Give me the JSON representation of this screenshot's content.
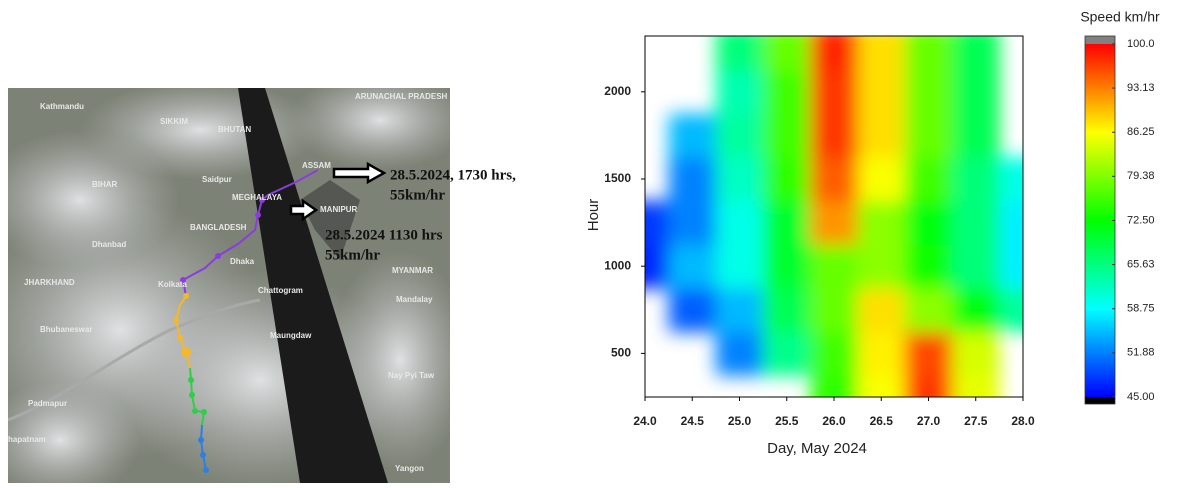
{
  "map": {
    "labels": [
      "Kathmandu",
      "SIKKIM",
      "BHUTAN",
      "ARUNACHAL PRADESH",
      "BIHAR",
      "Saidpur",
      "MEGHALAYA",
      "ASSAM",
      "BANGLADESH",
      "Dhanbad",
      "JHARKHAND",
      "Dhaka",
      "Kolkata",
      "Chattogram",
      "MYANMAR",
      "Mandalay",
      "Bhubaneswar",
      "Maungdaw",
      "Nay Pyi Taw",
      "Padmapur",
      "Yangon",
      "MANIPUR",
      "hapatnam"
    ],
    "annotations": [
      "28.5.2024, 1730 hrs,",
      "55km/hr",
      "28.5.2024 1130 hrs",
      "55km/hr"
    ]
  },
  "chart_data": {
    "type": "contour",
    "x_label": "Day, May 2024",
    "y_label": "Hour",
    "x": [
      24,
      24.5,
      25,
      25.5,
      26,
      26.5,
      27,
      27.5,
      28
    ],
    "y": [
      250,
      500,
      750,
      1000,
      1250,
      1500,
      1750,
      2000,
      2250
    ],
    "z": [
      [
        null,
        null,
        null,
        null,
        75,
        86,
        97,
        85,
        null
      ],
      [
        null,
        null,
        52,
        65,
        76,
        87,
        96,
        84,
        null
      ],
      [
        null,
        50,
        55,
        68,
        78,
        88,
        80,
        72,
        64
      ],
      [
        47,
        55,
        60,
        70,
        78,
        80,
        73,
        66,
        58
      ],
      [
        48,
        52,
        60,
        70,
        92,
        80,
        72,
        66,
        58
      ],
      [
        null,
        52,
        62,
        75,
        95,
        86,
        76,
        66,
        60
      ],
      [
        null,
        55,
        64,
        76,
        97,
        88,
        78,
        68,
        null
      ],
      [
        null,
        null,
        63,
        76,
        97,
        88,
        78,
        68,
        null
      ],
      [
        null,
        null,
        66,
        78,
        98,
        88,
        78,
        68,
        null
      ]
    ],
    "xlim": [
      24,
      28
    ],
    "ylim": [
      250,
      2320
    ],
    "xticks": [
      {
        "value": 24,
        "label": "24.0"
      },
      24.5,
      {
        "value": 25,
        "label": "25.0"
      },
      25.5,
      {
        "value": 26,
        "label": "26.0"
      },
      26.5,
      {
        "value": 27,
        "label": "27.0"
      },
      27.5,
      {
        "value": 28,
        "label": "28.0"
      }
    ],
    "yticks": [
      500,
      1000,
      1500,
      2000
    ],
    "colorbar": {
      "title": "Speed km/hr",
      "lim": [
        45,
        100
      ],
      "ticks": [
        {
          "value": 100,
          "label": "100.0"
        },
        93.13,
        86.25,
        79.38,
        {
          "value": 72.5,
          "label": "72.50"
        },
        65.63,
        58.75,
        51.88,
        {
          "value": 45,
          "label": "45.00"
        }
      ],
      "colors": [
        "#0000ff",
        "#00ffff",
        "#00ff00",
        "#ffff00",
        "#ff0000"
      ],
      "over_color": "#808080",
      "under_color": "#000000"
    }
  }
}
